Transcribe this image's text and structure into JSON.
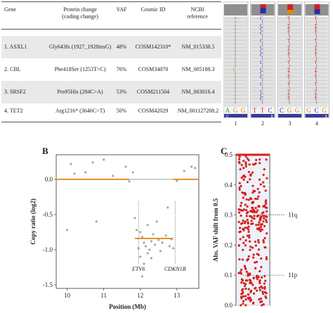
{
  "table": {
    "headers": {
      "gene": "Gene",
      "protein_change": "Protein change",
      "coding_change": "(coding change)",
      "vaf": "VAF",
      "cosmic": "Cosmic ID",
      "ncbi": "NCBI",
      "ncbi_ref": "reference"
    },
    "rows": [
      {
        "gene": "1. ASXL1",
        "protein": "Gly643fs (1927_1928insG)",
        "vaf": "48%",
        "cosmic": "COSM142310*",
        "ncbi": "NM_015338.5"
      },
      {
        "gene": "2. CBL",
        "protein": "Phe418Ser (1253T>C)",
        "vaf": "76%",
        "cosmic": "COSM34070",
        "ncbi": "NM_005188.3"
      },
      {
        "gene": "3. SRSF2",
        "protein": "Pro95His (284C>A)",
        "vaf": "53%",
        "cosmic": "COSM211504",
        "ncbi": "NM_003016.4"
      },
      {
        "gene": "4. TET2",
        "protein": "Arg1216* (3646C>T)",
        "vaf": "50%",
        "cosmic": "COSM42029",
        "ncbi": "NM_001127208.2"
      }
    ]
  },
  "igv": {
    "panel_numbers": [
      "1",
      "2",
      "3",
      "4"
    ],
    "ref_bases": [
      [
        "A",
        "G",
        "G"
      ],
      [
        "T",
        "T",
        "C"
      ],
      [
        "C",
        "G",
        "G"
      ],
      [
        "G",
        "C",
        "G"
      ]
    ],
    "alt_letters": [
      "G",
      "C",
      "T",
      "T"
    ],
    "aa_letters": [
      "G",
      "R",
      "",
      "R"
    ]
  },
  "panel_b": {
    "label": "B",
    "xlabel": "Position (Mb)",
    "ylabel": "Copy ratio (log2)",
    "gene_labels": [
      "ETV6",
      "CDKN1B"
    ]
  },
  "panel_c": {
    "label": "C",
    "ylabel": "Abs. VAF shift from 0.5",
    "annotations": [
      "11q",
      "11p"
    ]
  },
  "chart_data": [
    {
      "type": "scatter",
      "title": "",
      "xlabel": "Position (Mb)",
      "ylabel": "Copy ratio (log2)",
      "xlim": [
        9.7,
        13.6
      ],
      "ylim": [
        -1.55,
        0.35
      ],
      "xticks": [
        10,
        11,
        12,
        13
      ],
      "yticks": [
        0.0,
        -0.5,
        -1.0,
        -1.5
      ],
      "points": [
        {
          "x": 10.1,
          "y": 0.22
        },
        {
          "x": 10.2,
          "y": 0.08
        },
        {
          "x": 10.5,
          "y": 0.1
        },
        {
          "x": 10.7,
          "y": 0.24
        },
        {
          "x": 11.0,
          "y": 0.28
        },
        {
          "x": 11.25,
          "y": 0.05
        },
        {
          "x": 11.6,
          "y": 0.18
        },
        {
          "x": 11.7,
          "y": -0.03
        },
        {
          "x": 11.8,
          "y": 0.1
        },
        {
          "x": 13.0,
          "y": -0.02
        },
        {
          "x": 13.2,
          "y": 0.12
        },
        {
          "x": 13.4,
          "y": 0.18
        },
        {
          "x": 13.5,
          "y": 0.16
        },
        {
          "x": 10.0,
          "y": -0.72
        },
        {
          "x": 10.8,
          "y": -0.6
        },
        {
          "x": 11.85,
          "y": -0.55
        },
        {
          "x": 11.9,
          "y": -0.72
        },
        {
          "x": 12.0,
          "y": -0.75
        },
        {
          "x": 12.05,
          "y": -0.82
        },
        {
          "x": 12.1,
          "y": -0.9
        },
        {
          "x": 12.15,
          "y": -0.95
        },
        {
          "x": 12.2,
          "y": -0.65
        },
        {
          "x": 12.25,
          "y": -1.0
        },
        {
          "x": 12.3,
          "y": -0.88
        },
        {
          "x": 12.35,
          "y": -0.78
        },
        {
          "x": 12.4,
          "y": -0.93
        },
        {
          "x": 12.5,
          "y": -0.86
        },
        {
          "x": 12.55,
          "y": -1.02
        },
        {
          "x": 12.6,
          "y": -0.9
        },
        {
          "x": 12.7,
          "y": -0.8
        },
        {
          "x": 12.75,
          "y": -0.4
        },
        {
          "x": 12.8,
          "y": -0.95
        },
        {
          "x": 12.85,
          "y": -0.85
        },
        {
          "x": 12.9,
          "y": -0.98
        },
        {
          "x": 12.0,
          "y": -1.1
        },
        {
          "x": 12.1,
          "y": -1.2
        },
        {
          "x": 12.05,
          "y": -1.38
        },
        {
          "x": 12.2,
          "y": -1.05
        },
        {
          "x": 12.45,
          "y": -0.6
        },
        {
          "x": 11.95,
          "y": -0.98
        },
        {
          "x": 12.3,
          "y": -1.12
        }
      ],
      "segments": [
        {
          "x0": 9.7,
          "x1": 11.7,
          "y": 0.0
        },
        {
          "x0": 11.85,
          "x1": 12.9,
          "y": -0.84
        },
        {
          "x0": 12.9,
          "x1": 13.6,
          "y": 0.0
        }
      ]
    },
    {
      "type": "scatter",
      "title": "",
      "xlabel": "",
      "ylabel": "Abs. VAF shift from 0.5",
      "ylim": [
        0,
        0.5
      ],
      "yticks": [
        0.0,
        0.1,
        0.2,
        0.3,
        0.4,
        0.5
      ],
      "note": "strip of heterozygous SNP VAF shifts; cluster near 0.3 (11q) and near 0.1 (11p)",
      "values": [
        0.5,
        0.49,
        0.47,
        0.45,
        0.43,
        0.41,
        0.39,
        0.37,
        0.35,
        0.34,
        0.33,
        0.32,
        0.31,
        0.3,
        0.3,
        0.29,
        0.29,
        0.28,
        0.27,
        0.26,
        0.25,
        0.24,
        0.22,
        0.2,
        0.18,
        0.16,
        0.14,
        0.12,
        0.1,
        0.09,
        0.08,
        0.07,
        0.06,
        0.05,
        0.04,
        0.03,
        0.02,
        0.01
      ]
    }
  ]
}
